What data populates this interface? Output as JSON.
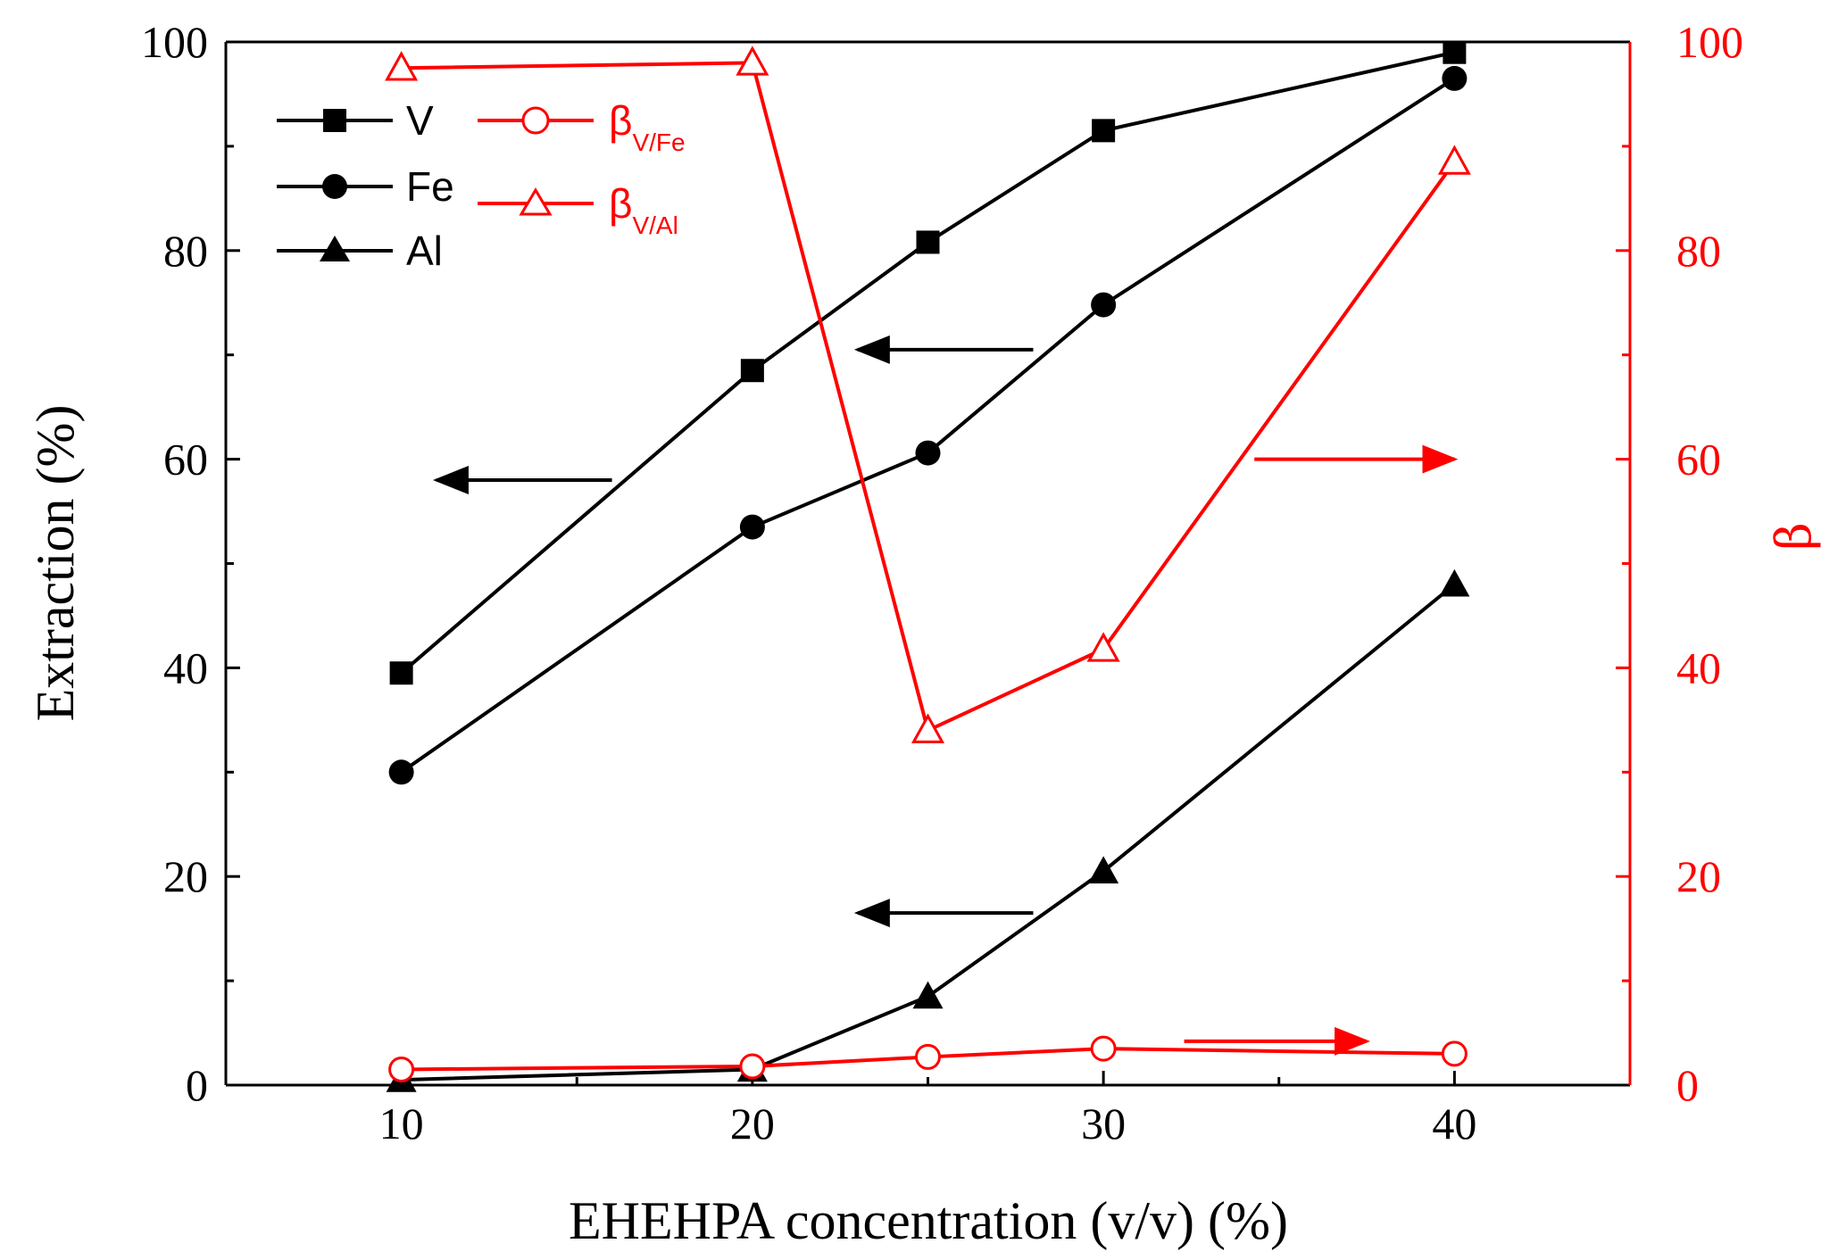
{
  "chart_data": {
    "type": "line",
    "title": "",
    "xlabel": "EHEHPA concentration (v/v) (%)",
    "ylabel": "Extraction (%)",
    "y2label": "β",
    "xlim": [
      5,
      45
    ],
    "ylim": [
      0,
      100
    ],
    "y2lim": [
      0,
      100
    ],
    "x_ticks": [
      10,
      20,
      30,
      40
    ],
    "x_tick_labels": [
      "10",
      "20",
      "30",
      "40"
    ],
    "y_ticks": [
      0,
      20,
      40,
      60,
      80,
      100
    ],
    "y_tick_labels": [
      "0",
      "20",
      "40",
      "60",
      "80",
      "100"
    ],
    "y2_ticks": [
      0,
      20,
      40,
      60,
      80,
      100
    ],
    "y2_tick_labels": [
      "0",
      "20",
      "40",
      "60",
      "80",
      "100"
    ],
    "x": [
      10,
      20,
      25,
      30,
      40
    ],
    "series": [
      {
        "name": "V",
        "axis": "left",
        "color": "#000000",
        "marker": "square",
        "filled": true,
        "values": [
          39.5,
          68.5,
          80.8,
          91.5,
          99.0
        ]
      },
      {
        "name": "Fe",
        "axis": "left",
        "color": "#000000",
        "marker": "circle",
        "filled": true,
        "values": [
          30.0,
          53.5,
          60.6,
          74.8,
          96.5
        ]
      },
      {
        "name": "Al",
        "axis": "left",
        "color": "#000000",
        "marker": "triangle",
        "filled": true,
        "values": [
          0.5,
          1.5,
          8.5,
          20.5,
          48.0
        ]
      },
      {
        "name": "βV/Fe",
        "label_main": "β",
        "label_sub": "V/Fe",
        "axis": "right",
        "color": "#ff0000",
        "marker": "circle",
        "filled": false,
        "values": [
          1.5,
          1.8,
          2.7,
          3.5,
          3.0
        ]
      },
      {
        "name": "βV/Al",
        "label_main": "β",
        "label_sub": "V/Al",
        "axis": "right",
        "color": "#ff0000",
        "marker": "triangle",
        "filled": false,
        "values": [
          97.5,
          98.0,
          34.0,
          41.8,
          88.5
        ]
      }
    ],
    "annotations": [
      {
        "type": "arrow",
        "direction": "left",
        "color": "#000000",
        "points_to": "left-axis",
        "near_series": "V"
      },
      {
        "type": "arrow",
        "direction": "left",
        "color": "#000000",
        "points_to": "left-axis",
        "near_series": "Fe"
      },
      {
        "type": "arrow",
        "direction": "left",
        "color": "#000000",
        "points_to": "left-axis",
        "near_series": "Al"
      },
      {
        "type": "arrow",
        "direction": "right",
        "color": "#ff0000",
        "points_to": "right-axis",
        "near_series": "βV/Al"
      },
      {
        "type": "arrow",
        "direction": "right",
        "color": "#ff0000",
        "points_to": "right-axis",
        "near_series": "βV/Fe"
      }
    ],
    "legend_position": "top-left",
    "grid": false
  }
}
